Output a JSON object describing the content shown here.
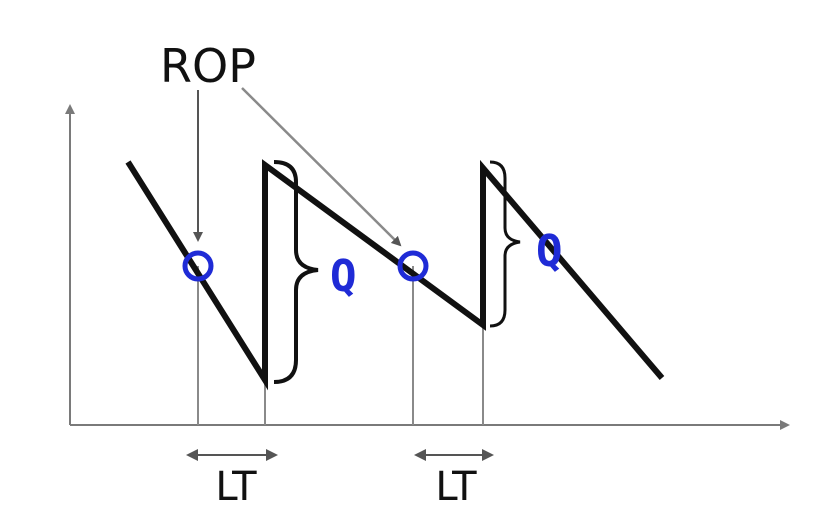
{
  "labels": {
    "reorder_point": "ROP",
    "lead_time_1": "LT",
    "lead_time_2": "LT",
    "order_quantity_1": "Q",
    "order_quantity_2": "Q"
  },
  "colors": {
    "line": "#111111",
    "guide": "#8a8a8a",
    "axis": "#7a7a7a",
    "marker": "#1f2bd6",
    "q_label": "#1f2bd6"
  }
}
